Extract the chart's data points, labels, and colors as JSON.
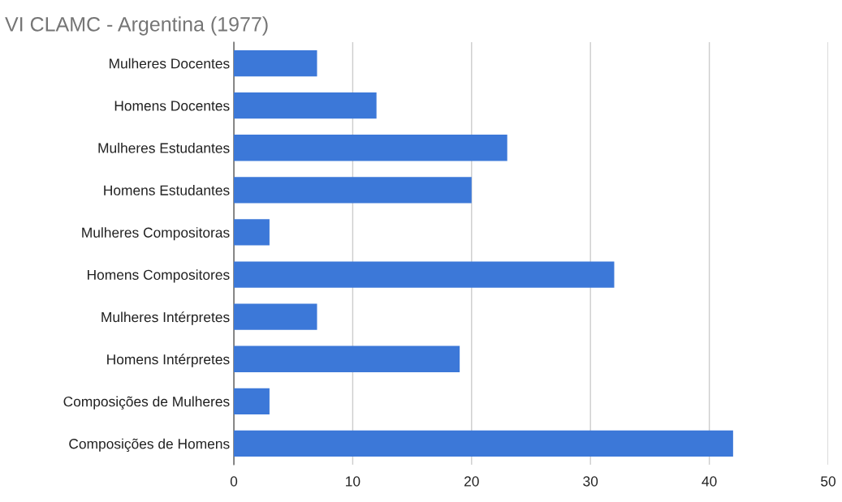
{
  "chart_data": {
    "type": "bar",
    "orientation": "horizontal",
    "title": "VI CLAMC - Argentina (1977)",
    "categories": [
      "Mulheres Docentes",
      "Homens Docentes",
      "Mulheres Estudantes",
      "Homens Estudantes",
      "Mulheres Compositoras",
      "Homens Compositores",
      "Mulheres Intérpretes",
      "Homens Intérpretes",
      "Composições de Mulheres",
      "Composições de Homens"
    ],
    "values": [
      7,
      12,
      23,
      20,
      3,
      32,
      7,
      19,
      3,
      42
    ],
    "color": "#3c78d8",
    "xlim": [
      0,
      50
    ],
    "xticks": [
      0,
      10,
      20,
      30,
      40,
      50
    ],
    "grid": "x"
  }
}
